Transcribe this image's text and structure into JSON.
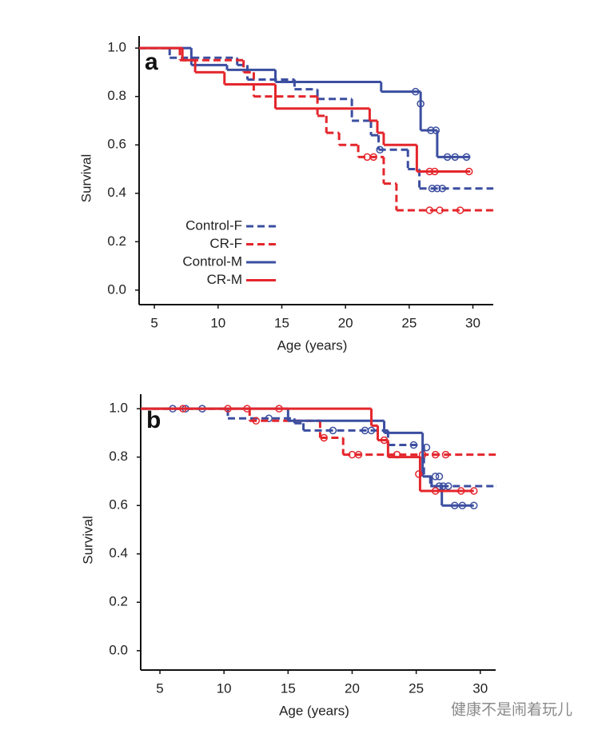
{
  "chart_data": [
    {
      "type": "line",
      "label": "a",
      "xlabel": "Age (years)",
      "ylabel": "Survival",
      "step": true,
      "legend": "lower left",
      "xlim": [
        3.8,
        31.6
      ],
      "ylim": [
        -0.06,
        1.05
      ],
      "xticks": [
        5,
        10,
        15,
        20,
        25,
        30
      ],
      "yticks": [
        {
          "value": 0,
          "label": "0.0"
        },
        0.2,
        0.4,
        0.6,
        0.8,
        {
          "value": 1,
          "label": "1.0"
        }
      ],
      "series": [
        {
          "name": "Control-F",
          "color": "#3b4ea0",
          "dash": true,
          "x": [
            3.8,
            6.2,
            11.5,
            12.3,
            16,
            17.8,
            20.5,
            22,
            22.6,
            24.9,
            25.8,
            31.6
          ],
          "values": [
            1,
            0.96,
            0.93,
            0.87,
            0.83,
            0.79,
            0.7,
            0.64,
            0.58,
            0.5,
            0.42,
            0.42
          ],
          "censored": {
            "x": [
              22.7,
              26.8,
              27.2,
              27.6
            ],
            "y": [
              0.58,
              0.42,
              0.42,
              0.42
            ]
          }
        },
        {
          "name": "CR-F",
          "color": "#e4262c",
          "dash": true,
          "x": [
            3.8,
            7,
            12,
            12.8,
            17.8,
            18.5,
            19.5,
            21,
            23,
            24,
            31.6
          ],
          "values": [
            1,
            0.95,
            0.9,
            0.8,
            0.72,
            0.65,
            0.6,
            0.55,
            0.44,
            0.33,
            0.33
          ],
          "censored": {
            "x": [
              21.7,
              22.2,
              26.6,
              27.4,
              29
            ],
            "y": [
              0.55,
              0.55,
              0.33,
              0.33,
              0.33
            ]
          }
        },
        {
          "name": "Control-M",
          "color": "#3b4ea0",
          "dash": false,
          "x": [
            3.8,
            7.9,
            10.7,
            14.5,
            22.8,
            25.9,
            27.2,
            29.8
          ],
          "values": [
            1,
            0.93,
            0.91,
            0.86,
            0.82,
            0.66,
            0.55,
            0.55
          ],
          "censored": {
            "x": [
              25.5,
              25.9,
              26.7,
              27.1,
              28,
              28.6,
              29.5
            ],
            "y": [
              0.82,
              0.77,
              0.66,
              0.66,
              0.55,
              0.55,
              0.55
            ]
          }
        },
        {
          "name": "CR-M",
          "color": "#e4262c",
          "dash": false,
          "x": [
            3.8,
            7.2,
            8.2,
            10.5,
            14.5,
            21.9,
            22.5,
            23,
            25.6,
            29.8
          ],
          "values": [
            1,
            0.95,
            0.9,
            0.85,
            0.75,
            0.7,
            0.65,
            0.6,
            0.49,
            0.49
          ],
          "censored": {
            "x": [
              26.6,
              27,
              29.7
            ],
            "y": [
              0.49,
              0.49,
              0.49
            ]
          }
        }
      ]
    },
    {
      "type": "line",
      "label": "b",
      "xlabel": "Age (years)",
      "ylabel": "Survival",
      "step": true,
      "xlim": [
        3.5,
        31.2
      ],
      "ylim": [
        -0.08,
        1.06
      ],
      "xticks": [
        5,
        10,
        15,
        20,
        25,
        30
      ],
      "yticks": [
        {
          "value": 0,
          "label": "0.0"
        },
        0.2,
        0.4,
        0.6,
        0.8,
        {
          "value": 1,
          "label": "1.0"
        }
      ],
      "series": [
        {
          "color": "#3b4ea0",
          "dash": true,
          "x": [
            3.5,
            10.3,
            15.5,
            16.2,
            22.8,
            25.6,
            26.1,
            31.2
          ],
          "values": [
            1,
            0.96,
            0.94,
            0.91,
            0.85,
            0.72,
            0.68,
            0.68
          ],
          "censored": {
            "x": [
              6,
              13.5,
              18.5,
              21,
              21.5,
              24.8,
              26.8,
              27.1,
              27.5
            ],
            "y": [
              1,
              0.96,
              0.91,
              0.91,
              0.91,
              0.85,
              0.68,
              0.68,
              0.68
            ]
          }
        },
        {
          "color": "#e4262c",
          "dash": true,
          "x": [
            3.5,
            12,
            17.5,
            19.3,
            31.2
          ],
          "values": [
            1,
            0.95,
            0.88,
            0.81,
            0.81
          ],
          "censored": {
            "x": [
              12.5,
              17.8,
              20,
              20.5,
              23.5,
              25.5,
              26.5,
              27.3
            ],
            "y": [
              0.95,
              0.88,
              0.81,
              0.81,
              0.81,
              0.81,
              0.81,
              0.81
            ]
          }
        },
        {
          "color": "#3b4ea0",
          "dash": false,
          "x": [
            3.5,
            15,
            22.5,
            25.5,
            26.2,
            27,
            29.5
          ],
          "values": [
            1,
            0.95,
            0.9,
            0.72,
            0.68,
            0.6,
            0.6
          ],
          "censored": {
            "x": [
              7,
              8.3,
              25.8,
              26.5,
              26.8,
              28,
              28.6,
              29.5
            ],
            "y": [
              1,
              1,
              0.84,
              0.72,
              0.72,
              0.6,
              0.6,
              0.6
            ]
          }
        },
        {
          "color": "#e4262c",
          "dash": false,
          "x": [
            3.5,
            21.5,
            22,
            22.8,
            25.3,
            29.5
          ],
          "values": [
            1,
            0.93,
            0.87,
            0.8,
            0.66,
            0.66
          ],
          "censored": {
            "x": [
              6.8,
              10.3,
              11.8,
              14.3,
              22.5,
              25.2,
              26.5,
              28.5,
              29.5
            ],
            "y": [
              1,
              1,
              1,
              1,
              0.87,
              0.73,
              0.66,
              0.66,
              0.66
            ]
          }
        }
      ]
    }
  ],
  "watermark": "健康不是闹着玩儿"
}
